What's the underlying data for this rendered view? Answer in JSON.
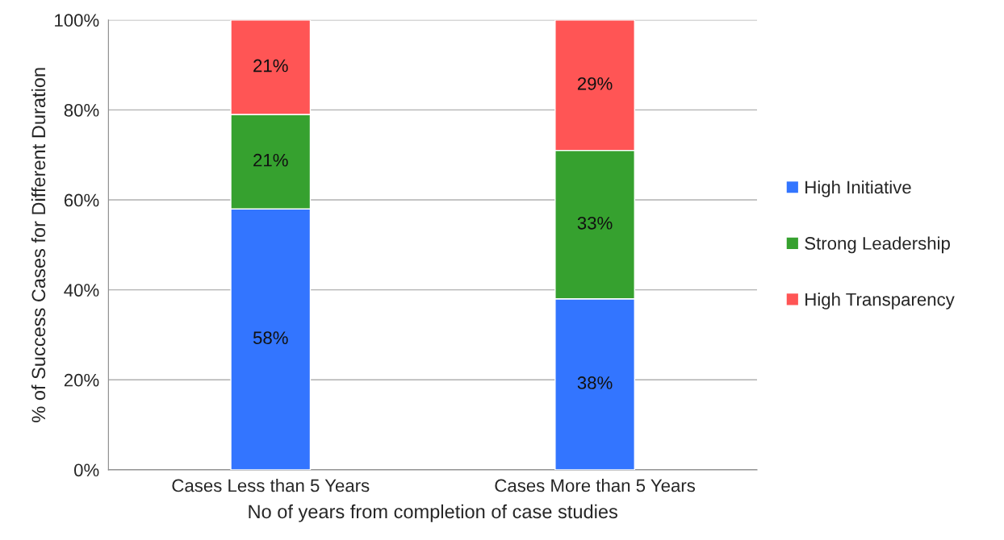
{
  "chart_data": {
    "type": "bar",
    "stacked": true,
    "categories": [
      "Cases Less than 5 Years",
      "Cases More than 5 Years"
    ],
    "series": [
      {
        "name": "High Initiative",
        "color": "#3375ff",
        "values": [
          58,
          38
        ]
      },
      {
        "name": "Strong Leadership",
        "color": "#36a12f",
        "values": [
          21,
          33
        ]
      },
      {
        "name": "High Transparency",
        "color": "#ff5555",
        "values": [
          21,
          29
        ]
      }
    ],
    "ylim": [
      0,
      100
    ],
    "yticks": [
      {
        "value": 0,
        "label": "0%"
      },
      {
        "value": 20,
        "label": "20%"
      },
      {
        "value": 40,
        "label": "40%"
      },
      {
        "value": 60,
        "label": "60%"
      },
      {
        "value": 80,
        "label": "80%"
      },
      {
        "value": 100,
        "label": "100%"
      }
    ],
    "xlabel": "No of years from completion of case studies",
    "ylabel": "% of Success Cases for Different Duration",
    "value_labels": [
      [
        "58%",
        "38%"
      ],
      [
        "21%",
        "33%"
      ],
      [
        "21%",
        "29%"
      ]
    ],
    "grid": "y",
    "legend": "right"
  }
}
